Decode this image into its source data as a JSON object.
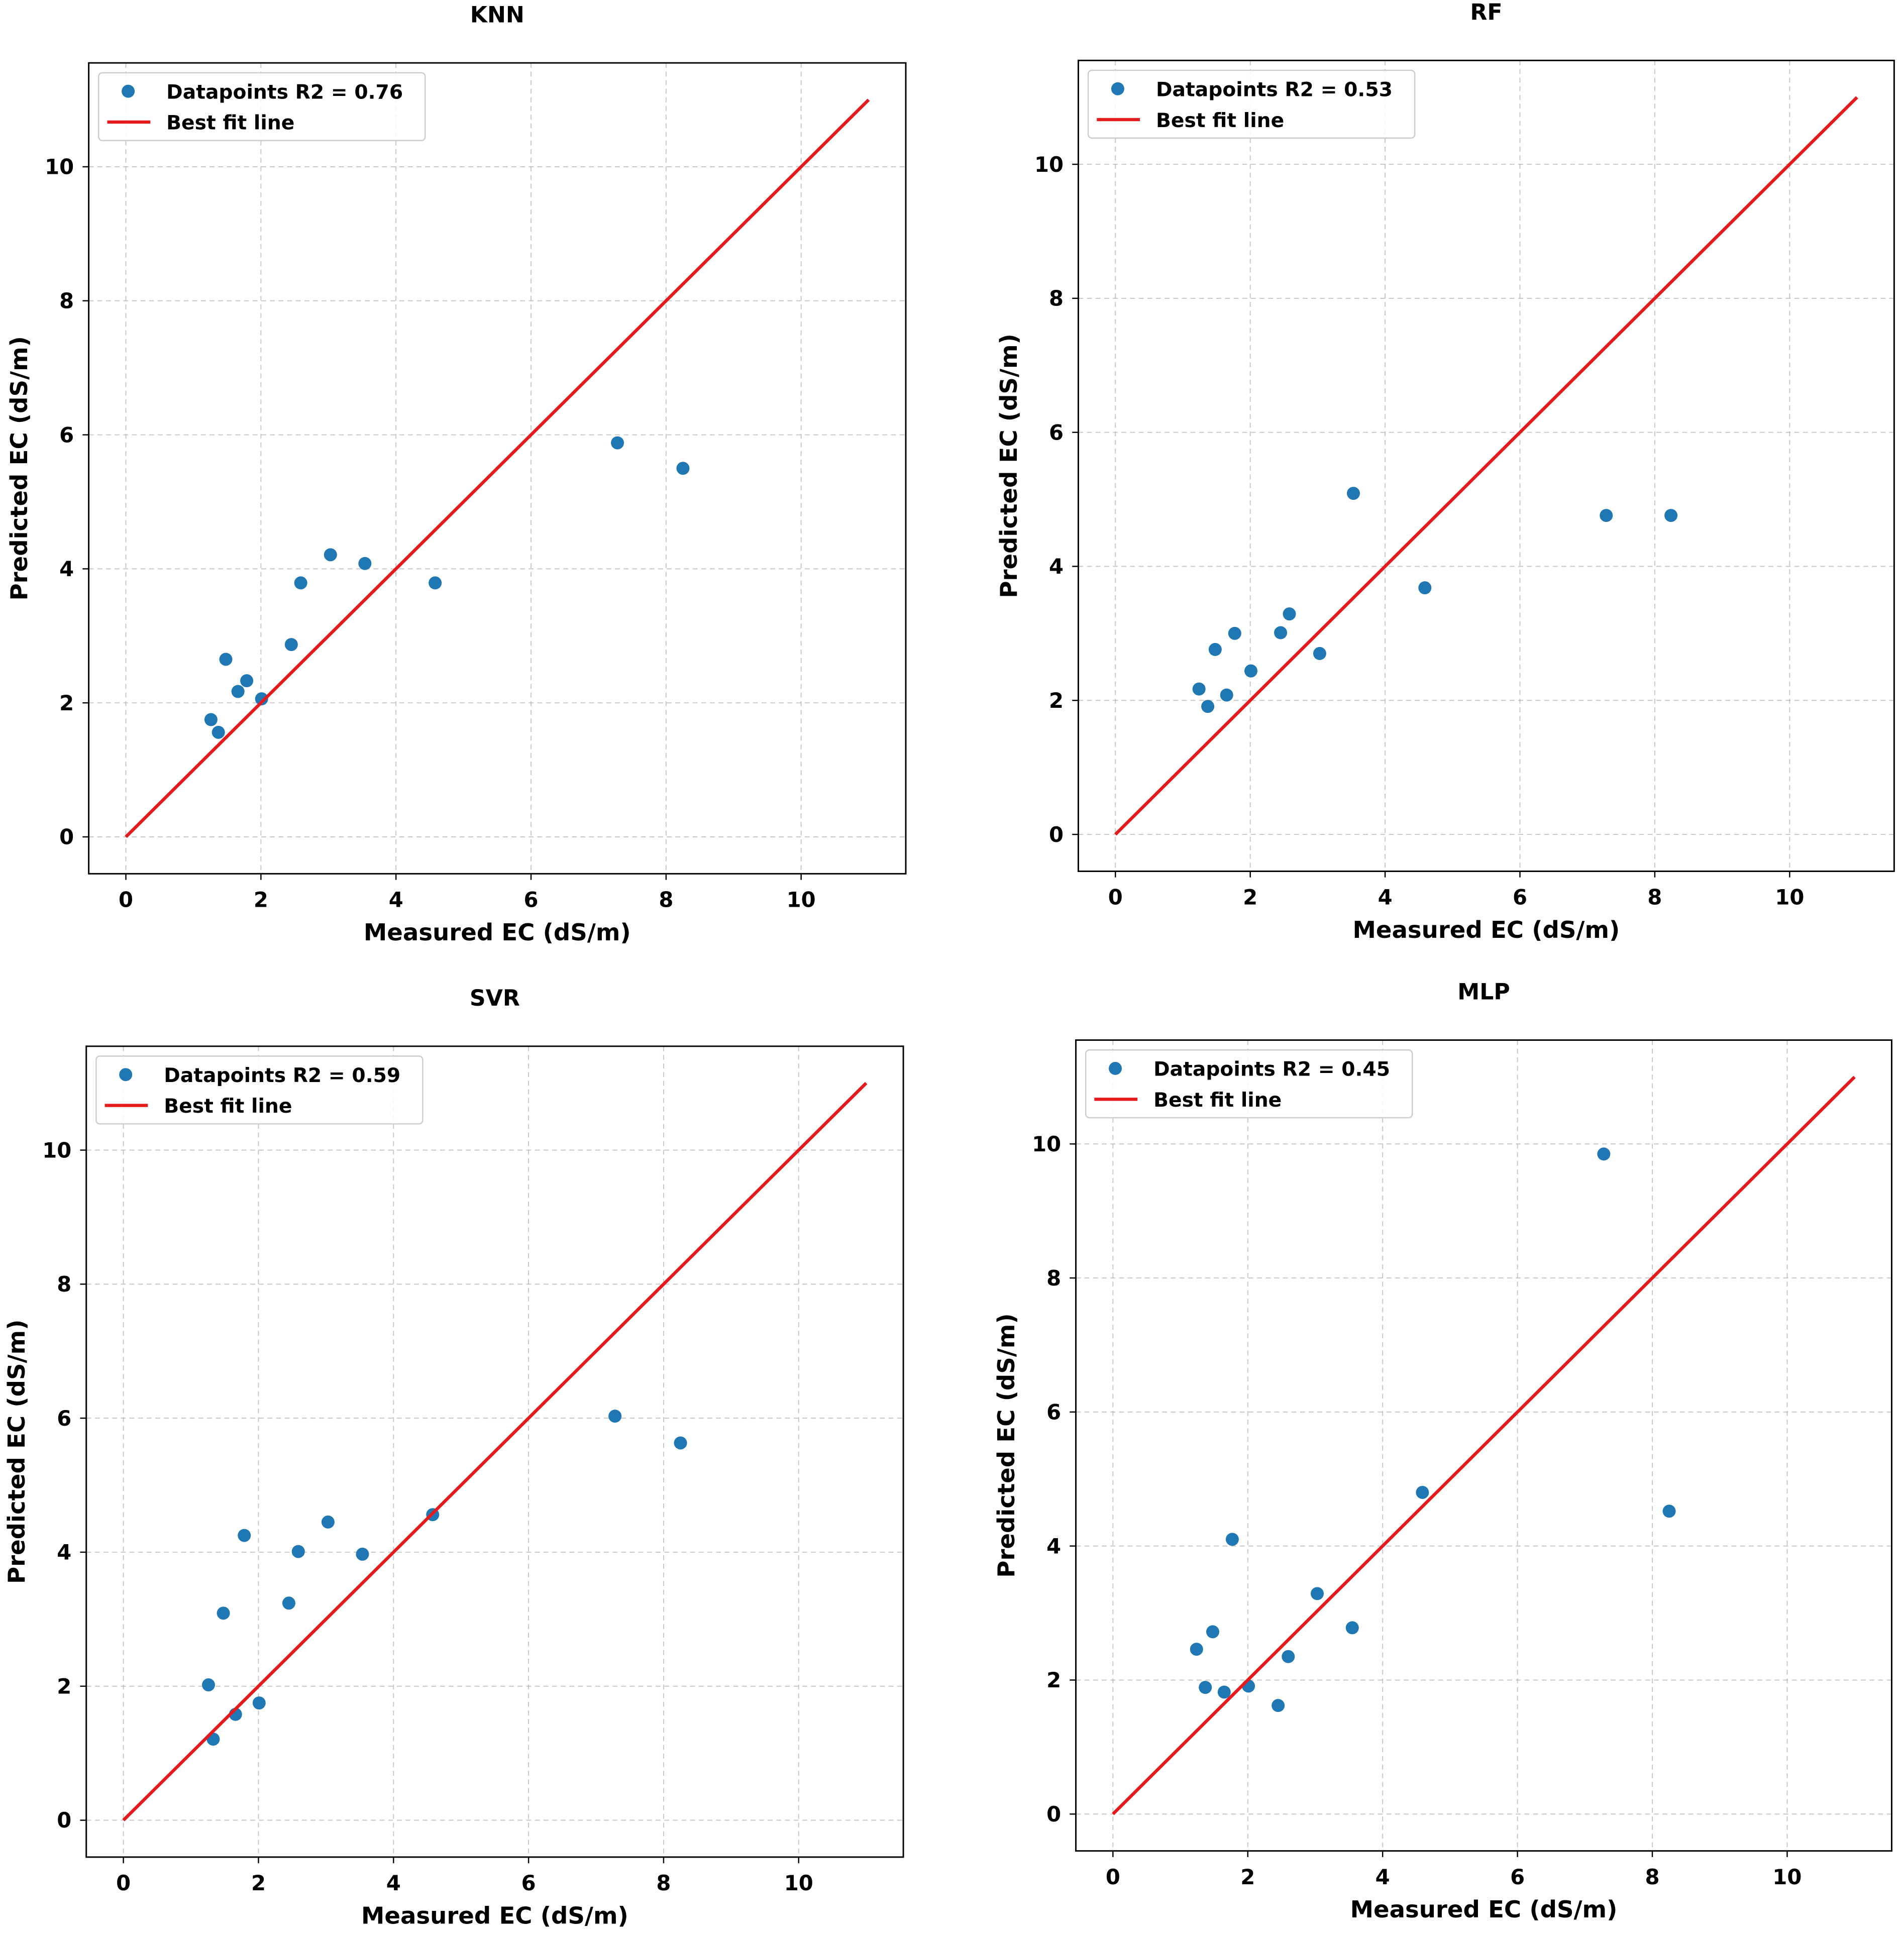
{
  "chart_data": [
    {
      "type": "scatter",
      "title": "KNN",
      "xlabel": "Measured EC (dS/m)",
      "ylabel": "Predicted EC (dS/m)",
      "xlim": [
        -0.55,
        11.55
      ],
      "ylim": [
        -0.55,
        11.55
      ],
      "xticks": [
        0,
        2,
        4,
        6,
        8,
        10
      ],
      "yticks": [
        0,
        2,
        4,
        6,
        8,
        10
      ],
      "grid": true,
      "legend_position": "top-left",
      "legend": [
        "Datapoints R2 = 0.76",
        "Best fit line"
      ],
      "series": [
        {
          "name": "Datapoints R2 = 0.76",
          "type": "scatter",
          "color": "#1f77b4",
          "x": [
            1.26,
            1.37,
            1.48,
            1.66,
            1.79,
            2.01,
            2.45,
            2.59,
            3.03,
            3.54,
            4.58,
            7.28,
            8.25
          ],
          "y": [
            1.75,
            1.56,
            2.65,
            2.17,
            2.33,
            2.06,
            2.87,
            3.79,
            4.21,
            4.08,
            3.79,
            5.88,
            5.5
          ]
        },
        {
          "name": "Best fit line",
          "type": "line",
          "color": "#e41a1c",
          "x": [
            0,
            11
          ],
          "y": [
            0,
            11
          ]
        }
      ]
    },
    {
      "type": "scatter",
      "title": "RF",
      "xlabel": "Measured EC (dS/m)",
      "ylabel": "Predicted EC (dS/m)",
      "xlim": [
        -0.55,
        11.55
      ],
      "ylim": [
        -0.55,
        11.55
      ],
      "xticks": [
        0,
        2,
        4,
        6,
        8,
        10
      ],
      "yticks": [
        0,
        2,
        4,
        6,
        8,
        10
      ],
      "grid": true,
      "legend_position": "top-left",
      "legend": [
        "Datapoints R2 = 0.53",
        "Best fit line"
      ],
      "series": [
        {
          "name": "Datapoints R2 = 0.53",
          "type": "scatter",
          "color": "#1f77b4",
          "x": [
            1.24,
            1.37,
            1.48,
            1.65,
            1.77,
            2.01,
            2.45,
            2.58,
            3.03,
            3.53,
            4.59,
            7.28,
            8.24
          ],
          "y": [
            2.17,
            1.91,
            2.76,
            2.08,
            3.0,
            2.44,
            3.01,
            3.29,
            2.7,
            5.09,
            3.68,
            4.76,
            4.76
          ]
        },
        {
          "name": "Best fit line",
          "type": "line",
          "color": "#e41a1c",
          "x": [
            0,
            11
          ],
          "y": [
            0,
            11
          ]
        }
      ]
    },
    {
      "type": "scatter",
      "title": "SVR",
      "xlabel": "Measured EC (dS/m)",
      "ylabel": "Predicted EC (dS/m)",
      "xlim": [
        -0.55,
        11.55
      ],
      "ylim": [
        -0.55,
        11.55
      ],
      "xticks": [
        0,
        2,
        4,
        6,
        8,
        10
      ],
      "yticks": [
        0,
        2,
        4,
        6,
        8,
        10
      ],
      "grid": true,
      "legend_position": "top-left",
      "legend": [
        "Datapoints R2 = 0.59",
        "Best fit line"
      ],
      "series": [
        {
          "name": "Datapoints R2 = 0.59",
          "type": "scatter",
          "color": "#1f77b4",
          "x": [
            1.26,
            1.33,
            1.48,
            1.66,
            1.79,
            2.01,
            2.45,
            2.59,
            3.03,
            3.54,
            4.58,
            7.28,
            8.25
          ],
          "y": [
            2.02,
            1.21,
            3.09,
            1.58,
            4.25,
            1.75,
            3.24,
            4.01,
            4.45,
            3.97,
            4.56,
            6.03,
            5.63
          ]
        },
        {
          "name": "Best fit line",
          "type": "line",
          "color": "#e41a1c",
          "x": [
            0,
            11
          ],
          "y": [
            0,
            11
          ]
        }
      ]
    },
    {
      "type": "scatter",
      "title": "MLP",
      "xlabel": "Measured EC (dS/m)",
      "ylabel": "Predicted EC (dS/m)",
      "xlim": [
        -0.55,
        11.55
      ],
      "ylim": [
        -0.55,
        11.55
      ],
      "xticks": [
        0,
        2,
        4,
        6,
        8,
        10
      ],
      "yticks": [
        0,
        2,
        4,
        6,
        8,
        10
      ],
      "grid": true,
      "legend_position": "top-left",
      "legend": [
        "Datapoints R2 = 0.45",
        "Best fit line"
      ],
      "series": [
        {
          "name": "Datapoints R2 = 0.45",
          "type": "scatter",
          "color": "#1f77b4",
          "x": [
            1.24,
            1.37,
            1.48,
            1.65,
            1.77,
            2.01,
            2.45,
            2.6,
            3.03,
            3.55,
            4.59,
            7.28,
            8.25
          ],
          "y": [
            2.46,
            1.89,
            2.72,
            1.82,
            4.1,
            1.91,
            1.62,
            2.35,
            3.29,
            2.78,
            4.8,
            9.85,
            4.52
          ]
        },
        {
          "name": "Best fit line",
          "type": "line",
          "color": "#e41a1c",
          "x": [
            0,
            11
          ],
          "y": [
            0,
            11
          ]
        }
      ]
    }
  ]
}
